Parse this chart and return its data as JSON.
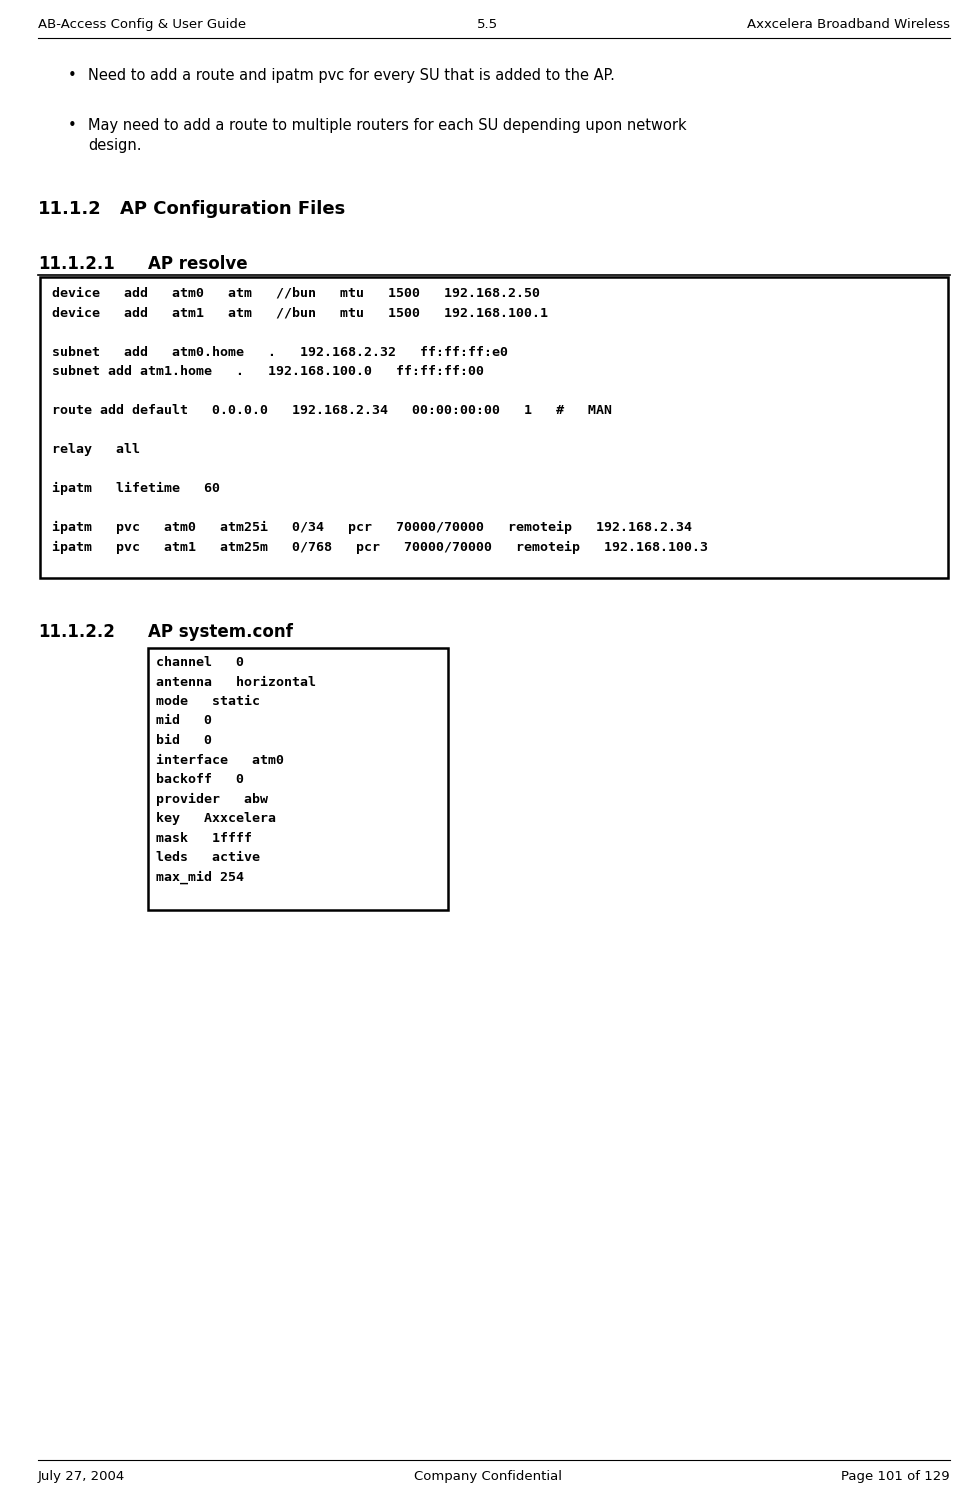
{
  "header_left": "AB-Access Config & User Guide",
  "header_center": "5.5",
  "header_right": "Axxcelera Broadband Wireless",
  "footer_left": "July 27, 2004",
  "footer_center": "Company Confidential",
  "footer_right": "Page 101 of 129",
  "bullet1": "Need to add a route and ipatm pvc for every SU that is added to the AP.",
  "bullet2_line1": "May need to add a route to multiple routers for each SU depending upon network",
  "bullet2_line2": "design.",
  "section_112": "11.1.2",
  "section_112_title": "AP Configuration Files",
  "section_1121": "11.1.2.1",
  "section_1121_title": "AP resolve",
  "resolve_box_lines": [
    "device   add   atm0   atm   //bun   mtu   1500   192.168.2.50",
    "device   add   atm1   atm   //bun   mtu   1500   192.168.100.1",
    "",
    "subnet   add   atm0.home   .   192.168.2.32   ff:ff:ff:e0",
    "subnet add atm1.home   .   192.168.100.0   ff:ff:ff:00",
    "",
    "route add default   0.0.0.0   192.168.2.34   00:00:00:00   1   #   MAN",
    "",
    "relay   all",
    "",
    "ipatm   lifetime   60",
    "",
    "ipatm   pvc   atm0   atm25i   0/34   pcr   70000/70000   remoteip   192.168.2.34",
    "ipatm   pvc   atm1   atm25m   0/768   pcr   70000/70000   remoteip   192.168.100.3"
  ],
  "section_1122": "11.1.2.2",
  "section_1122_title": "AP system.conf",
  "sysconf_box_lines": [
    "channel   0",
    "antenna   horizontal",
    "mode   static",
    "mid   0",
    "bid   0",
    "interface   atm0",
    "backoff   0",
    "provider   abw",
    "key   Axxcelera",
    "mask   1ffff",
    "leds   active",
    "max_mid 254"
  ],
  "bg_color": "#ffffff",
  "text_color": "#000000",
  "box_bg": "#ffffff",
  "box_border": "#000000",
  "header_font_size": 9.5,
  "body_font_size": 10.5,
  "code_font_size": 9.5,
  "section_font_size": 13,
  "subsection_font_size": 12
}
